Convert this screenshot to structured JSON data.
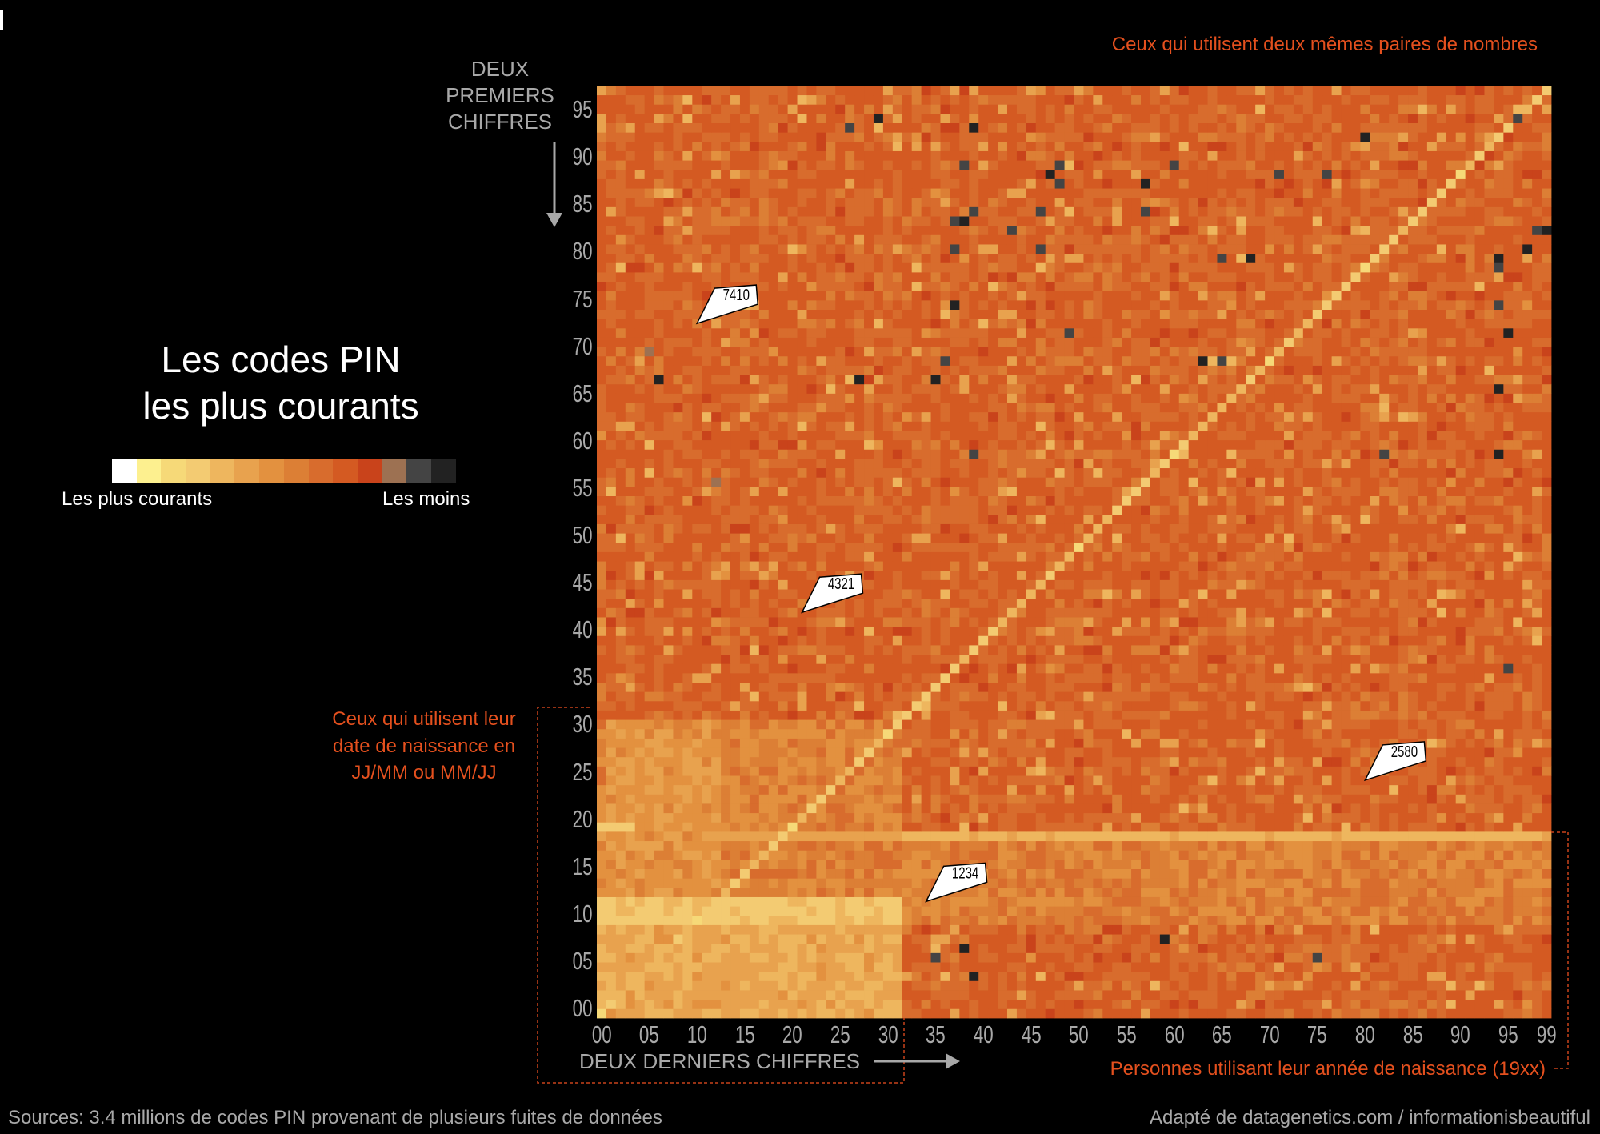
{
  "title_lines": [
    "Les codes PIN",
    "les plus courants"
  ],
  "legend": {
    "most_label": "Les plus courants",
    "least_label": "Les moins"
  },
  "notes": {
    "repeated_pairs": "Ceux qui utilisent deux mêmes paires de nombres",
    "birthdate_lines": [
      "Ceux qui utilisent leur",
      "date de naissance en",
      "JJ/MM ou MM/JJ"
    ],
    "birth_year": "Personnes utilisant leur année de naissance (19xx)"
  },
  "footer": {
    "sources": "Sources: 3.4 millions de codes PIN provenant de plusieurs fuites de données",
    "credit": "Adapté de datagenetics.com / informationisbeautiful"
  },
  "chart_data": {
    "type": "heatmap",
    "title": "Les codes PIN les plus courants",
    "ylabel_lines": [
      "DEUX",
      "PREMIERS",
      "CHIFFRES"
    ],
    "xlabel": "DEUX DERNIERS CHIFFRES",
    "x_range": [
      0,
      99
    ],
    "y_range": [
      0,
      99
    ],
    "x_ticks": [
      "00",
      "05",
      "10",
      "15",
      "20",
      "25",
      "30",
      "35",
      "40",
      "45",
      "50",
      "55",
      "60",
      "65",
      "70",
      "75",
      "80",
      "85",
      "90",
      "95",
      "99"
    ],
    "y_ticks": [
      "00",
      "05",
      "10",
      "15",
      "20",
      "25",
      "30",
      "35",
      "40",
      "45",
      "50",
      "55",
      "60",
      "65",
      "70",
      "75",
      "80",
      "85",
      "90",
      "95"
    ],
    "color_scale": [
      "#ffffff",
      "#fdf08f",
      "#f6d978",
      "#f3cb72",
      "#eeb65e",
      "#e8a24e",
      "#e3913f",
      "#dc7f35",
      "#d86c2d",
      "#d45a22",
      "#c9431b",
      "#9d7152",
      "#444444",
      "#222222"
    ],
    "scale_meaning": "level 0 = most common, level 13 = least common",
    "patterns": {
      "base_level": 8.6,
      "diagonal_repeated_pairs_level": 3,
      "birth_year_row": {
        "first_two": 19,
        "from_last_two": 32,
        "level": 3.5
      },
      "day_month_block": {
        "first_two_max": 12,
        "last_two_max": 31,
        "level": 4.5
      },
      "month_rows_10_12_level": 2.5,
      "month_columns": {
        "last_two": [
          1,
          12
        ],
        "first_two_max": 31,
        "level": 5.5
      }
    },
    "least_common_cells": [
      [
        29,
        96,
        13
      ],
      [
        26,
        95,
        12
      ],
      [
        39,
        95,
        13
      ],
      [
        80,
        94,
        13
      ],
      [
        96,
        96,
        12
      ],
      [
        38,
        91,
        12
      ],
      [
        48,
        91,
        12
      ],
      [
        60,
        91,
        12
      ],
      [
        47,
        90,
        13
      ],
      [
        48,
        89,
        12
      ],
      [
        57,
        89,
        13
      ],
      [
        71,
        90,
        12
      ],
      [
        76,
        90,
        12
      ],
      [
        46,
        86,
        12
      ],
      [
        39,
        86,
        12
      ],
      [
        57,
        86,
        12
      ],
      [
        37,
        85,
        12
      ],
      [
        38,
        85,
        13
      ],
      [
        43,
        84,
        12
      ],
      [
        98,
        84,
        12
      ],
      [
        99,
        84,
        13
      ],
      [
        37,
        82,
        12
      ],
      [
        46,
        82,
        12
      ],
      [
        97,
        82,
        13
      ],
      [
        65,
        81,
        12
      ],
      [
        68,
        81,
        13
      ],
      [
        94,
        81,
        13
      ],
      [
        94,
        80,
        12
      ],
      [
        37,
        76,
        13
      ],
      [
        94,
        76,
        12
      ],
      [
        95,
        73,
        13
      ],
      [
        49,
        73,
        12
      ],
      [
        36,
        70,
        12
      ],
      [
        63,
        70,
        13
      ],
      [
        65,
        70,
        12
      ],
      [
        6,
        68,
        13
      ],
      [
        27,
        68,
        13
      ],
      [
        35,
        68,
        13
      ],
      [
        94,
        67,
        13
      ],
      [
        39,
        60,
        12
      ],
      [
        82,
        60,
        12
      ],
      [
        94,
        60,
        13
      ],
      [
        95,
        37,
        12
      ],
      [
        59,
        8,
        13
      ],
      [
        38,
        7,
        13
      ],
      [
        35,
        6,
        12
      ],
      [
        75,
        6,
        12
      ],
      [
        39,
        4,
        13
      ],
      [
        5,
        71,
        11
      ],
      [
        12,
        57,
        11
      ]
    ],
    "annotations": [
      {
        "pin": "7410",
        "x": 10,
        "y": 74
      },
      {
        "pin": "4321",
        "x": 21,
        "y": 43
      },
      {
        "pin": "2580",
        "x": 80,
        "y": 25
      },
      {
        "pin": "1234",
        "x": 34,
        "y": 12
      }
    ]
  }
}
